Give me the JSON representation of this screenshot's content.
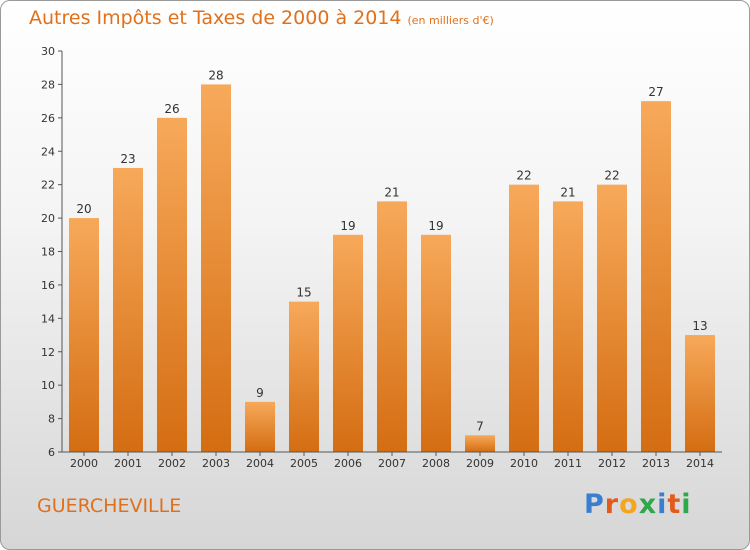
{
  "title": "Autres Impôts et Taxes de 2000 à 2014",
  "subtitle": "(en milliers d'€)",
  "place": "GUERCHEVILLE",
  "logo": {
    "letters": [
      "P",
      "r",
      "o",
      "x",
      "i",
      "t",
      "i"
    ],
    "colors": [
      "#3a7fcf",
      "#e35a1d",
      "#f4a61f",
      "#2ea84a",
      "#3a7fcf",
      "#e35a1d",
      "#2ea84a"
    ]
  },
  "colors": {
    "bar_top": "#f7a95a",
    "bar_bottom": "#d46d12",
    "accent": "#e0701c"
  },
  "chart_data": {
    "type": "bar",
    "categories": [
      "2000",
      "2001",
      "2002",
      "2003",
      "2004",
      "2005",
      "2006",
      "2007",
      "2008",
      "2009",
      "2010",
      "2011",
      "2012",
      "2013",
      "2014"
    ],
    "values": [
      20,
      23,
      26,
      28,
      9,
      15,
      19,
      21,
      19,
      7,
      22,
      21,
      22,
      27,
      13
    ],
    "title": "Autres Impôts et Taxes de 2000 à 2014",
    "subtitle": "(en milliers d'€)",
    "ylim": [
      6,
      30
    ],
    "yticks": [
      6,
      8,
      10,
      12,
      14,
      16,
      18,
      20,
      22,
      24,
      26,
      28,
      30
    ],
    "grid": false,
    "legend": "none"
  }
}
